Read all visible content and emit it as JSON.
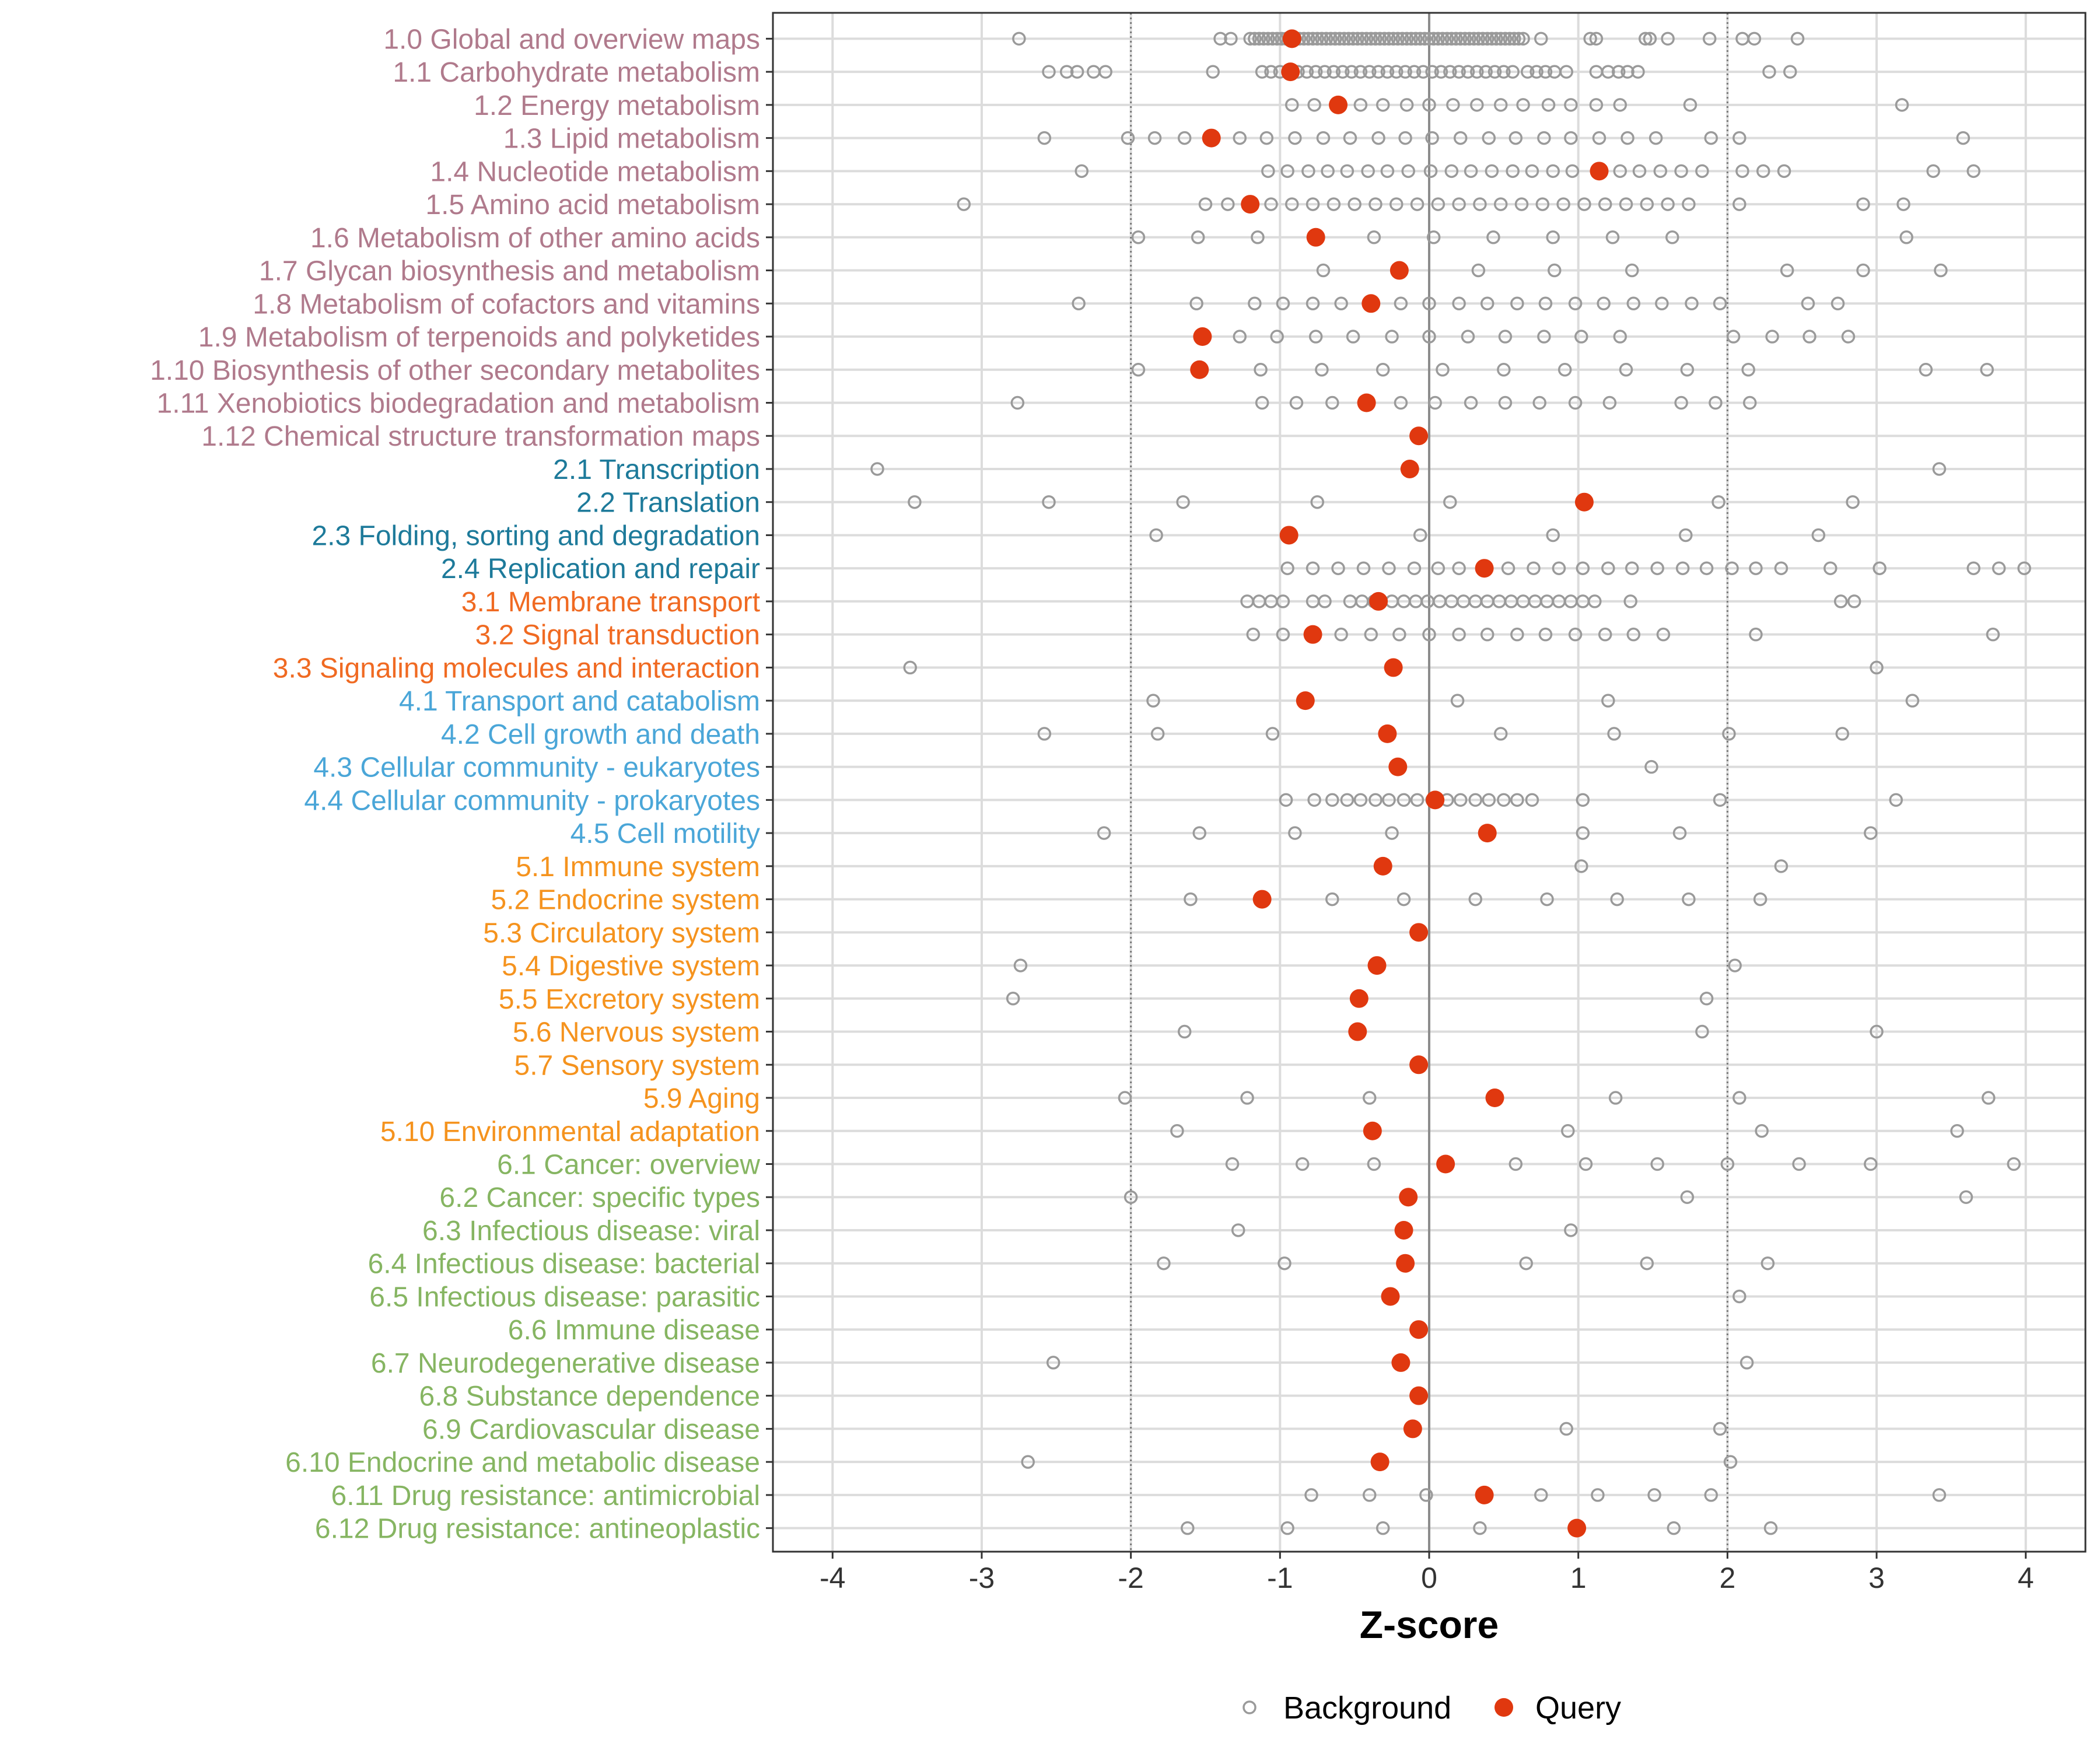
{
  "chart_data": {
    "type": "scatter",
    "title": "",
    "xlabel": "Z-score",
    "ylabel": "",
    "xlim": [
      -4.4,
      4.4
    ],
    "x_ticks": [
      -4,
      -3,
      -2,
      -1,
      0,
      1,
      2,
      3,
      4
    ],
    "x_tick_labels": [
      "-4",
      "-3",
      "-2",
      "-1",
      "0",
      "1",
      "2",
      "3",
      "4"
    ],
    "reference_lines": [
      -2,
      0,
      2
    ],
    "grid": true,
    "legend_position": "bottom",
    "group_colors": {
      "1": "#b07a8c",
      "2": "#1d7a9a",
      "3": "#f06a22",
      "4": "#4aa6d8",
      "5": "#f5931e",
      "6": "#86b562"
    },
    "series": [
      {
        "name": "Background",
        "marker": "open-circle",
        "color": "#9a9a9a"
      },
      {
        "name": "Query",
        "marker": "filled-circle",
        "color": "#e0380f"
      }
    ],
    "categories": [
      {
        "label": "1.0 Global and overview maps",
        "group": "1",
        "query": -0.92,
        "background": [
          -2.75,
          -1.4,
          -1.33,
          -1.2,
          -1.17,
          -1.14,
          -1.11,
          -1.08,
          -1.05,
          -1.02,
          -0.99,
          -0.96,
          -0.93,
          -0.9,
          -0.87,
          -0.84,
          -0.81,
          -0.78,
          -0.75,
          -0.72,
          -0.69,
          -0.66,
          -0.63,
          -0.6,
          -0.57,
          -0.54,
          -0.51,
          -0.48,
          -0.45,
          -0.42,
          -0.39,
          -0.36,
          -0.33,
          -0.3,
          -0.27,
          -0.24,
          -0.21,
          -0.18,
          -0.15,
          -0.12,
          -0.09,
          -0.06,
          -0.03,
          0.0,
          0.03,
          0.06,
          0.09,
          0.12,
          0.15,
          0.18,
          0.21,
          0.24,
          0.27,
          0.3,
          0.33,
          0.36,
          0.39,
          0.42,
          0.45,
          0.48,
          0.51,
          0.54,
          0.57,
          0.6,
          0.63,
          0.75,
          1.08,
          1.12,
          1.45,
          1.48,
          1.6,
          1.88,
          2.1,
          2.18,
          2.47
        ]
      },
      {
        "label": "1.1 Carbohydrate metabolism",
        "group": "1",
        "query": -0.93,
        "background": [
          -2.55,
          -2.43,
          -2.36,
          -2.25,
          -2.17,
          -1.45,
          -1.12,
          -1.06,
          -1.0,
          -0.94,
          -0.88,
          -0.82,
          -0.76,
          -0.7,
          -0.64,
          -0.58,
          -0.52,
          -0.46,
          -0.4,
          -0.34,
          -0.28,
          -0.22,
          -0.16,
          -0.1,
          -0.04,
          0.02,
          0.08,
          0.14,
          0.2,
          0.26,
          0.32,
          0.38,
          0.44,
          0.5,
          0.56,
          0.66,
          0.72,
          0.78,
          0.84,
          0.92,
          1.12,
          1.2,
          1.27,
          1.33,
          1.4,
          2.28,
          2.42
        ]
      },
      {
        "label": "1.2 Energy metabolism",
        "group": "1",
        "query": -0.61,
        "background": [
          -0.92,
          -0.77,
          -0.46,
          -0.31,
          -0.15,
          0.0,
          0.16,
          0.32,
          0.48,
          0.63,
          0.8,
          0.95,
          1.12,
          1.28,
          1.75,
          3.17
        ]
      },
      {
        "label": "1.3 Lipid metabolism",
        "group": "1",
        "query": -1.46,
        "background": [
          -2.58,
          -2.02,
          -1.84,
          -1.64,
          -1.27,
          -1.09,
          -0.9,
          -0.71,
          -0.53,
          -0.34,
          -0.16,
          0.02,
          0.21,
          0.4,
          0.58,
          0.77,
          0.95,
          1.14,
          1.33,
          1.52,
          1.89,
          2.08,
          3.58
        ]
      },
      {
        "label": "1.4 Nucleotide metabolism",
        "group": "1",
        "query": 1.14,
        "background": [
          -2.33,
          -1.08,
          -0.95,
          -0.81,
          -0.68,
          -0.55,
          -0.41,
          -0.28,
          -0.14,
          0.01,
          0.15,
          0.28,
          0.42,
          0.56,
          0.69,
          0.83,
          0.96,
          1.28,
          1.41,
          1.55,
          1.69,
          1.83,
          2.1,
          2.24,
          2.38,
          3.38,
          3.65
        ]
      },
      {
        "label": "1.5 Amino acid metabolism",
        "group": "1",
        "query": -1.2,
        "background": [
          -3.12,
          -1.5,
          -1.35,
          -1.06,
          -0.92,
          -0.78,
          -0.64,
          -0.5,
          -0.36,
          -0.22,
          -0.08,
          0.06,
          0.2,
          0.34,
          0.48,
          0.62,
          0.76,
          0.9,
          1.04,
          1.18,
          1.32,
          1.46,
          1.6,
          1.74,
          2.08,
          2.91,
          3.18
        ]
      },
      {
        "label": "1.6 Metabolism of other amino acids",
        "group": "1",
        "query": -0.76,
        "background": [
          -1.95,
          -1.55,
          -1.15,
          -0.37,
          0.03,
          0.43,
          0.83,
          1.23,
          1.63,
          3.2
        ]
      },
      {
        "label": "1.7 Glycan biosynthesis and metabolism",
        "group": "1",
        "query": -0.2,
        "background": [
          -0.71,
          0.33,
          0.84,
          1.36,
          2.4,
          2.91,
          3.43
        ]
      },
      {
        "label": "1.8 Metabolism of cofactors and vitamins",
        "group": "1",
        "query": -0.39,
        "background": [
          -2.35,
          -1.56,
          -1.17,
          -0.98,
          -0.78,
          -0.59,
          -0.19,
          0.0,
          0.2,
          0.39,
          0.59,
          0.78,
          0.98,
          1.17,
          1.37,
          1.56,
          1.76,
          1.95,
          2.54,
          2.74
        ]
      },
      {
        "label": "1.9 Metabolism of terpenoids and polyketides",
        "group": "1",
        "query": -1.52,
        "background": [
          -1.27,
          -1.02,
          -0.76,
          -0.51,
          -0.25,
          0.0,
          0.26,
          0.51,
          0.77,
          1.02,
          1.28,
          2.04,
          2.3,
          2.55,
          2.81
        ]
      },
      {
        "label": "1.10 Biosynthesis of other secondary metabolites",
        "group": "1",
        "query": -1.54,
        "background": [
          -1.95,
          -1.13,
          -0.72,
          -0.31,
          0.09,
          0.5,
          0.91,
          1.32,
          1.73,
          2.14,
          3.33,
          3.74
        ]
      },
      {
        "label": "1.11 Xenobiotics biodegradation and metabolism",
        "group": "1",
        "query": -0.42,
        "background": [
          -2.76,
          -1.12,
          -0.89,
          -0.65,
          -0.19,
          0.04,
          0.28,
          0.51,
          0.74,
          0.98,
          1.21,
          1.69,
          1.92,
          2.15
        ]
      },
      {
        "label": "1.12 Chemical structure transformation maps",
        "group": "1",
        "query": -0.07,
        "background": []
      },
      {
        "label": "2.1 Transcription",
        "group": "2",
        "query": -0.13,
        "background": [
          -3.7,
          3.42
        ]
      },
      {
        "label": "2.2 Translation",
        "group": "2",
        "query": 1.04,
        "background": [
          -3.45,
          -2.55,
          -1.65,
          -0.75,
          0.14,
          1.94,
          2.84
        ]
      },
      {
        "label": "2.3 Folding, sorting and degradation",
        "group": "2",
        "query": -0.94,
        "background": [
          -1.83,
          -0.06,
          0.83,
          1.72,
          2.61
        ]
      },
      {
        "label": "2.4 Replication and repair",
        "group": "2",
        "query": 0.37,
        "background": [
          -0.95,
          -0.78,
          -0.61,
          -0.44,
          -0.27,
          -0.1,
          0.06,
          0.2,
          0.53,
          0.7,
          0.87,
          1.03,
          1.2,
          1.36,
          1.53,
          1.7,
          1.86,
          2.03,
          2.19,
          2.36,
          2.69,
          3.02,
          3.65,
          3.82,
          3.99
        ]
      },
      {
        "label": "3.1 Membrane transport",
        "group": "3",
        "query": -0.34,
        "background": [
          -1.22,
          -1.14,
          -1.06,
          -0.98,
          -0.78,
          -0.7,
          -0.53,
          -0.45,
          -0.37,
          -0.25,
          -0.17,
          -0.09,
          -0.01,
          0.07,
          0.15,
          0.23,
          0.31,
          0.39,
          0.47,
          0.55,
          0.63,
          0.71,
          0.79,
          0.87,
          0.95,
          1.03,
          1.11,
          1.35,
          2.76,
          2.85
        ]
      },
      {
        "label": "3.2 Signal transduction",
        "group": "3",
        "query": -0.78,
        "background": [
          -1.18,
          -0.98,
          -0.59,
          -0.39,
          -0.2,
          0.0,
          0.2,
          0.39,
          0.59,
          0.78,
          0.98,
          1.18,
          1.37,
          1.57,
          2.19,
          3.78
        ]
      },
      {
        "label": "3.3 Signaling molecules and interaction",
        "group": "3",
        "query": -0.24,
        "background": [
          -3.48,
          3.0
        ]
      },
      {
        "label": "4.1 Transport and catabolism",
        "group": "4",
        "query": -0.83,
        "background": [
          -1.85,
          0.19,
          1.2,
          3.24
        ]
      },
      {
        "label": "4.2 Cell growth and death",
        "group": "4",
        "query": -0.28,
        "background": [
          -2.58,
          -1.82,
          -1.05,
          0.48,
          1.24,
          2.01,
          2.77
        ]
      },
      {
        "label": "4.3 Cellular community - eukaryotes",
        "group": "4",
        "query": -0.21,
        "background": [
          1.49
        ]
      },
      {
        "label": "4.4 Cellular community - prokaryotes",
        "group": "4",
        "query": 0.04,
        "background": [
          -0.96,
          -0.77,
          -0.65,
          -0.55,
          -0.46,
          -0.36,
          -0.27,
          -0.17,
          -0.08,
          0.02,
          0.12,
          0.21,
          0.31,
          0.4,
          0.5,
          0.59,
          0.69,
          1.03,
          1.95,
          3.13
        ]
      },
      {
        "label": "4.5 Cell motility",
        "group": "4",
        "query": 0.39,
        "background": [
          -2.18,
          -1.54,
          -0.9,
          -0.25,
          1.03,
          1.68,
          2.96
        ]
      },
      {
        "label": "5.1 Immune system",
        "group": "5",
        "query": -0.31,
        "background": [
          1.02,
          2.36
        ]
      },
      {
        "label": "5.2 Endocrine system",
        "group": "5",
        "query": -1.12,
        "background": [
          -1.6,
          -0.65,
          -0.17,
          0.31,
          0.79,
          1.26,
          1.74,
          2.22
        ]
      },
      {
        "label": "5.3 Circulatory system",
        "group": "5",
        "query": -0.07,
        "background": []
      },
      {
        "label": "5.4 Digestive system",
        "group": "5",
        "query": -0.35,
        "background": [
          -2.74,
          2.05
        ]
      },
      {
        "label": "5.5 Excretory system",
        "group": "5",
        "query": -0.47,
        "background": [
          -2.79,
          1.86
        ]
      },
      {
        "label": "5.6 Nervous system",
        "group": "5",
        "query": -0.48,
        "background": [
          -1.64,
          1.83,
          3.0
        ]
      },
      {
        "label": "5.7 Sensory system",
        "group": "5",
        "query": -0.07,
        "background": []
      },
      {
        "label": "5.9 Aging",
        "group": "5",
        "query": 0.44,
        "background": [
          -2.04,
          -1.22,
          -0.4,
          1.25,
          2.08,
          3.75
        ]
      },
      {
        "label": "5.10 Environmental adaptation",
        "group": "5",
        "query": -0.38,
        "background": [
          -1.69,
          0.93,
          2.23,
          3.54
        ]
      },
      {
        "label": "6.1 Cancer: overview",
        "group": "6",
        "query": 0.11,
        "background": [
          -1.32,
          -0.85,
          -0.37,
          0.58,
          1.05,
          1.53,
          2.0,
          2.48,
          2.96,
          3.92
        ]
      },
      {
        "label": "6.2 Cancer: specific types",
        "group": "6",
        "query": -0.14,
        "background": [
          -2.0,
          1.73,
          3.6
        ]
      },
      {
        "label": "6.3 Infectious disease: viral",
        "group": "6",
        "query": -0.17,
        "background": [
          -1.28,
          0.95
        ]
      },
      {
        "label": "6.4 Infectious disease: bacterial",
        "group": "6",
        "query": -0.16,
        "background": [
          -1.78,
          -0.97,
          0.65,
          1.46,
          2.27
        ]
      },
      {
        "label": "6.5 Infectious disease: parasitic",
        "group": "6",
        "query": -0.26,
        "background": [
          2.08
        ]
      },
      {
        "label": "6.6 Immune disease",
        "group": "6",
        "query": -0.07,
        "background": []
      },
      {
        "label": "6.7 Neurodegenerative disease",
        "group": "6",
        "query": -0.19,
        "background": [
          -2.52,
          2.13
        ]
      },
      {
        "label": "6.8 Substance dependence",
        "group": "6",
        "query": -0.07,
        "background": []
      },
      {
        "label": "6.9 Cardiovascular disease",
        "group": "6",
        "query": -0.11,
        "background": [
          0.92,
          1.95
        ]
      },
      {
        "label": "6.10 Endocrine and metabolic disease",
        "group": "6",
        "query": -0.33,
        "background": [
          -2.69,
          2.02
        ]
      },
      {
        "label": "6.11 Drug resistance: antimicrobial",
        "group": "6",
        "query": 0.37,
        "background": [
          -0.79,
          -0.4,
          -0.02,
          0.75,
          1.13,
          1.51,
          1.89,
          3.42
        ]
      },
      {
        "label": "6.12 Drug resistance: antineoplastic",
        "group": "6",
        "query": 0.99,
        "background": [
          -1.62,
          -0.95,
          -0.31,
          0.34,
          1.64,
          2.29
        ]
      }
    ]
  }
}
